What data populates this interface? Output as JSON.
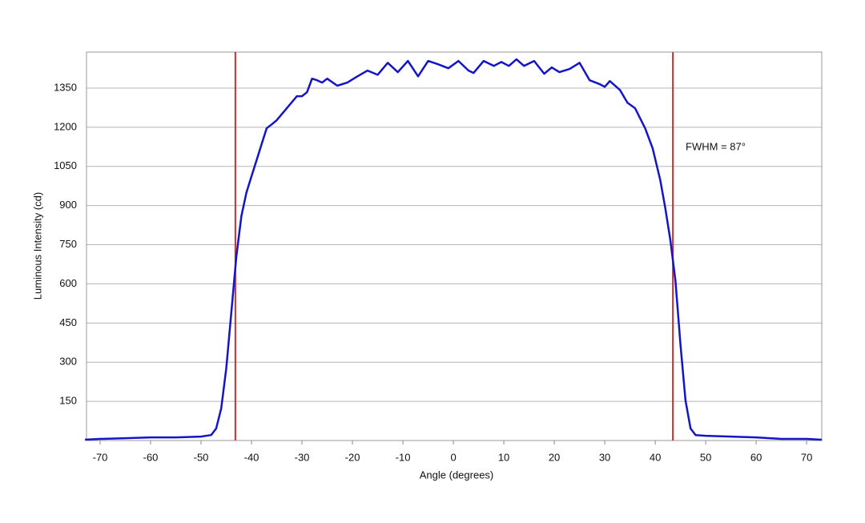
{
  "chart_data": {
    "type": "line",
    "x_label": "Angle (degrees)",
    "y_label": "Luminous Intensity (cd)",
    "annotation": "FWHM = 87°",
    "xlim": [
      -72.7,
      73
    ],
    "ylim": [
      0,
      1488
    ],
    "xticks": [
      -70,
      -60,
      -50,
      -40,
      -30,
      -20,
      -10,
      0,
      10,
      20,
      30,
      40,
      50,
      60,
      70
    ],
    "yticks": [
      150,
      300,
      450,
      600,
      750,
      900,
      1050,
      1200,
      1350
    ],
    "grid": true,
    "markers": {
      "color": "#d42a2a",
      "x": [
        -43.2,
        43.5
      ]
    },
    "x": [
      -73,
      -70,
      -65,
      -60,
      -55,
      -50,
      -48,
      -47,
      -46,
      -45,
      -44,
      -43,
      -42,
      -41,
      -40,
      -39,
      -38,
      -37,
      -36,
      -35,
      -33,
      -31,
      -30,
      -29,
      -28,
      -27,
      -26,
      -25,
      -23,
      -21,
      -19,
      -17,
      -15,
      -13,
      -11,
      -9,
      -7,
      -5,
      -3,
      -1,
      1,
      3,
      4,
      6,
      8,
      9.5,
      11,
      12.5,
      14,
      16,
      18,
      19.5,
      21,
      23,
      25,
      27,
      29,
      30,
      31,
      33,
      34.5,
      36,
      38,
      39.5,
      41,
      42,
      43,
      44,
      45,
      46,
      47,
      48,
      50,
      55,
      60,
      65,
      70,
      73
    ],
    "series": [
      {
        "name": "Luminous Intensity",
        "color": "#1414c8",
        "values": [
          3,
          6,
          9,
          12,
          12,
          15,
          21,
          46,
          123,
          276,
          490,
          705,
          860,
          950,
          1012,
          1073,
          1135,
          1196,
          1211,
          1227,
          1273,
          1319,
          1319,
          1334,
          1386,
          1380,
          1371,
          1386,
          1359,
          1371,
          1395,
          1417,
          1401,
          1447,
          1411,
          1454,
          1395,
          1454,
          1441,
          1426,
          1454,
          1417,
          1408,
          1454,
          1435,
          1450,
          1435,
          1460,
          1435,
          1454,
          1405,
          1429,
          1411,
          1423,
          1447,
          1380,
          1365,
          1355,
          1377,
          1343,
          1294,
          1273,
          1196,
          1119,
          997,
          889,
          767,
          613,
          368,
          153,
          46,
          21,
          18,
          15,
          12,
          6,
          6,
          3
        ]
      }
    ]
  }
}
